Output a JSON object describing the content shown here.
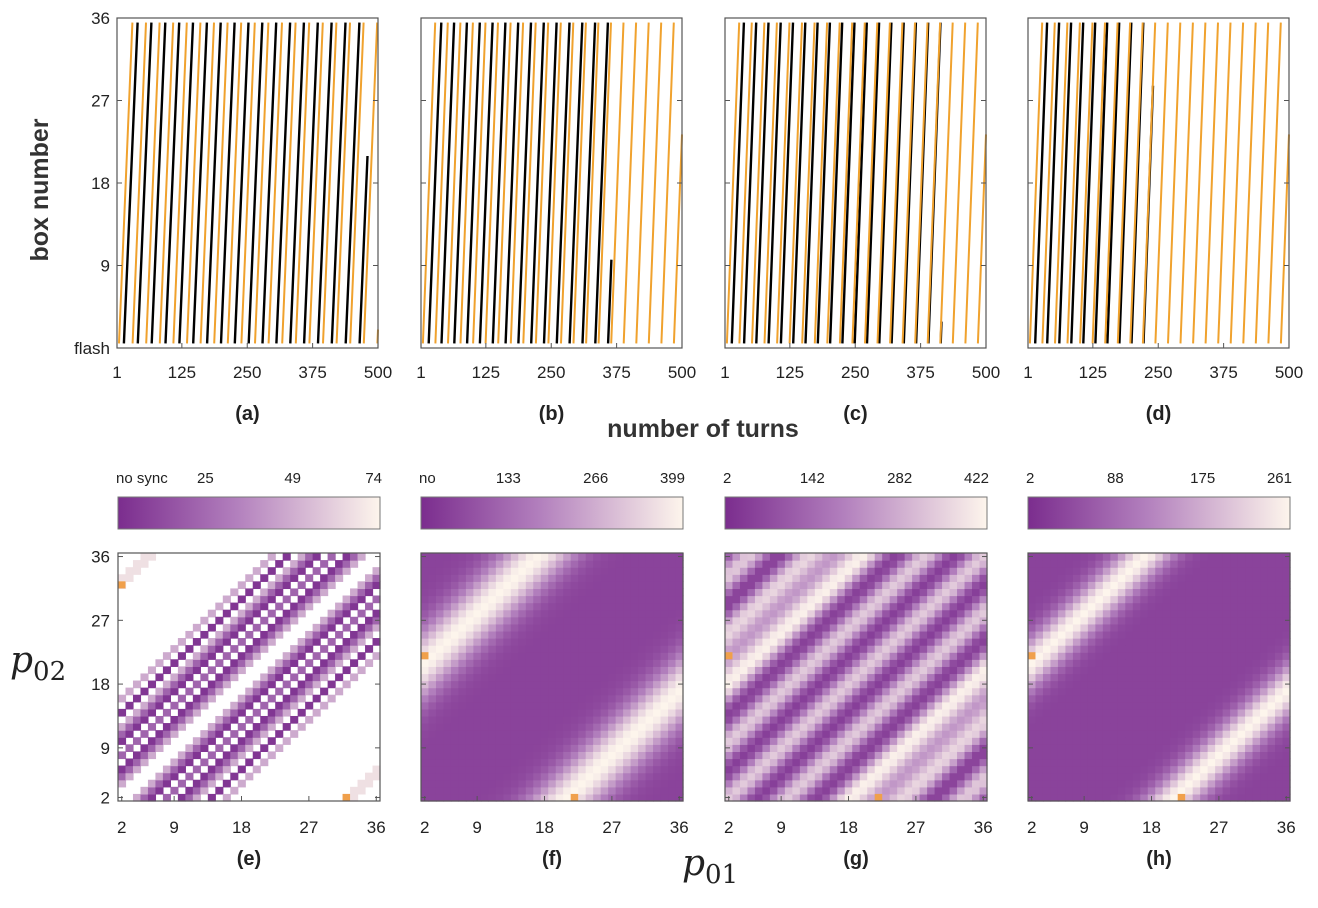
{
  "figure": {
    "top_ylabel": "box number",
    "top_xlabel": "number of turns",
    "bottom_ylabel": {
      "main": "p",
      "sub": "02"
    },
    "bottom_xlabel": {
      "main": "p",
      "sub": "01"
    }
  },
  "colors": {
    "series_a": "#000000",
    "series_b": "#f0a22e",
    "cmap_dark": "#7b2d8e",
    "cmap_light": "#fdf5ec",
    "marker": "#f0a04b"
  },
  "chart_data": [
    {
      "type": "line",
      "panel": "(a)",
      "x": [
        1,
        500
      ],
      "xticks": [
        "1",
        "125",
        "250",
        "375",
        "500"
      ],
      "xlim": [
        1,
        500
      ],
      "yticks": [
        "flash",
        "9",
        "18",
        "27",
        "36"
      ],
      "ylim": [
        0,
        36
      ],
      "series": [
        {
          "color": "black",
          "sawtooth_period_turns": 26.5,
          "phase": 0.5,
          "active_until": 480
        },
        {
          "color": "orange",
          "sawtooth_period_turns": 26.0,
          "phase": 0.15,
          "active_until": 500
        }
      ]
    },
    {
      "type": "line",
      "panel": "(b)",
      "x": [
        1,
        500
      ],
      "xticks": [
        "1",
        "125",
        "250",
        "375",
        "500"
      ],
      "xlim": [
        1,
        500
      ],
      "yticks": [
        "flash",
        "9",
        "18",
        "27",
        "36"
      ],
      "ylim": [
        0,
        36
      ],
      "series": [
        {
          "color": "black",
          "sawtooth_period_turns": 24.5,
          "phase": 0.6,
          "active_until": 365
        },
        {
          "color": "orange",
          "sawtooth_period_turns": 24.0,
          "phase": 0.15,
          "active_until": 500
        }
      ]
    },
    {
      "type": "line",
      "panel": "(c)",
      "x": [
        1,
        500
      ],
      "xticks": [
        "1",
        "125",
        "250",
        "375",
        "500"
      ],
      "xlim": [
        1,
        500
      ],
      "yticks": [
        "flash",
        "9",
        "18",
        "27",
        "36"
      ],
      "ylim": [
        0,
        36
      ],
      "series": [
        {
          "color": "black",
          "sawtooth_period_turns": 23.5,
          "phase": 0.55,
          "active_until": 415
        },
        {
          "color": "orange",
          "sawtooth_period_turns": 24.0,
          "phase": 0.15,
          "active_until": 500
        }
      ]
    },
    {
      "type": "line",
      "panel": "(d)",
      "x": [
        1,
        500
      ],
      "xticks": [
        "1",
        "125",
        "250",
        "375",
        "500"
      ],
      "xlim": [
        1,
        500
      ],
      "yticks": [
        "flash",
        "9",
        "18",
        "27",
        "36"
      ],
      "ylim": [
        0,
        36
      ],
      "series": [
        {
          "color": "black",
          "sawtooth_period_turns": 23.0,
          "phase": 0.6,
          "active_until": 240
        },
        {
          "color": "orange",
          "sawtooth_period_turns": 24.0,
          "phase": 0.15,
          "active_until": 500
        }
      ]
    },
    {
      "type": "heatmap",
      "panel": "(e)",
      "pattern": "diagonal_bands",
      "xticks": [
        "2",
        "9",
        "18",
        "27",
        "36"
      ],
      "yticks": [
        "2",
        "9",
        "18",
        "27",
        "36"
      ],
      "xlim": [
        2,
        36
      ],
      "ylim": [
        2,
        36
      ],
      "colorbar": {
        "labels": [
          "no sync",
          "25",
          "49",
          "74"
        ],
        "range": [
          0,
          74
        ]
      },
      "marker_cells": [
        [
          2,
          32
        ],
        [
          32,
          2
        ]
      ]
    },
    {
      "type": "heatmap",
      "panel": "(f)",
      "pattern": "smooth_bands",
      "band_offsets": [
        -19,
        19
      ],
      "band_width": 5.0,
      "xticks": [
        "2",
        "9",
        "18",
        "27",
        "36"
      ],
      "yticks": [
        "2",
        "9",
        "18",
        "27",
        "36"
      ],
      "xlim": [
        2,
        36
      ],
      "ylim": [
        2,
        36
      ],
      "colorbar": {
        "labels": [
          "no",
          "133",
          "266",
          "399"
        ],
        "range": [
          0,
          399
        ]
      },
      "marker_cells": [
        [
          2,
          22
        ],
        [
          22,
          2
        ]
      ]
    },
    {
      "type": "heatmap",
      "panel": "(g)",
      "pattern": "striped_bands",
      "xticks": [
        "2",
        "9",
        "18",
        "27",
        "36"
      ],
      "yticks": [
        "2",
        "9",
        "18",
        "27",
        "36"
      ],
      "xlim": [
        2,
        36
      ],
      "ylim": [
        2,
        36
      ],
      "colorbar": {
        "labels": [
          "2",
          "142",
          "282",
          "422"
        ],
        "range": [
          2,
          422
        ]
      },
      "marker_cells": [
        [
          2,
          22
        ],
        [
          22,
          2
        ]
      ]
    },
    {
      "type": "heatmap",
      "panel": "(h)",
      "pattern": "smooth_bands",
      "band_offsets": [
        -19,
        19
      ],
      "band_width": 3.8,
      "xticks": [
        "2",
        "9",
        "18",
        "27",
        "36"
      ],
      "yticks": [
        "2",
        "9",
        "18",
        "27",
        "36"
      ],
      "xlim": [
        2,
        36
      ],
      "ylim": [
        2,
        36
      ],
      "colorbar": {
        "labels": [
          "2",
          "88",
          "175",
          "261"
        ],
        "range": [
          2,
          261
        ]
      },
      "marker_cells": [
        [
          2,
          22
        ],
        [
          22,
          2
        ]
      ]
    }
  ]
}
